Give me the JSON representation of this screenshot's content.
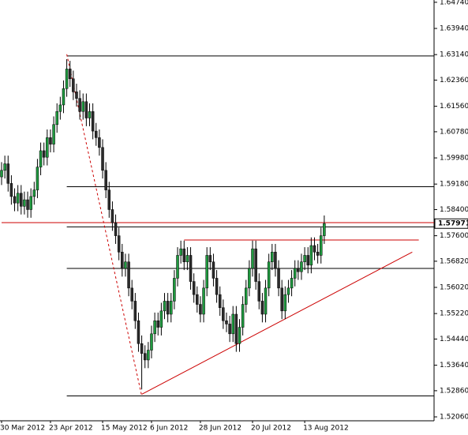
{
  "chart_data": {
    "type": "candlestick",
    "up_color": "#1f9a3f",
    "down_color": "#2b2b2b",
    "wick_color": "#000000",
    "categories": [
      "30 Mar 2012",
      null,
      null,
      null,
      null,
      null,
      null,
      null,
      null,
      null,
      null,
      null,
      null,
      null,
      null,
      "23 Apr 2012",
      null,
      null,
      null,
      null,
      null,
      null,
      null,
      null,
      null,
      null,
      null,
      null,
      null,
      null,
      null,
      "15 May 2012",
      null,
      null,
      null,
      null,
      null,
      null,
      null,
      null,
      null,
      null,
      null,
      null,
      null,
      null,
      "6 Jun 2012",
      null,
      null,
      null,
      null,
      null,
      null,
      null,
      null,
      null,
      null,
      null,
      null,
      null,
      null,
      "28 Jun 2012",
      null,
      null,
      null,
      null,
      null,
      null,
      null,
      null,
      null,
      null,
      null,
      null,
      null,
      null,
      null,
      "20 Jul 2012",
      null,
      null,
      null,
      null,
      null,
      null,
      null,
      null,
      null,
      null,
      null,
      null,
      null,
      null,
      null,
      "13 Aug 2012",
      null,
      null,
      null,
      null,
      null,
      null
    ],
    "open": [
      1.594,
      1.596,
      1.598,
      1.592,
      1.588,
      1.586,
      1.589,
      1.585,
      1.587,
      1.584,
      1.588,
      1.59,
      1.597,
      1.602,
      1.6,
      1.606,
      1.604,
      1.61,
      1.614,
      1.616,
      1.621,
      1.627,
      1.624,
      1.62,
      1.618,
      1.614,
      1.617,
      1.612,
      1.614,
      1.608,
      1.606,
      1.603,
      1.596,
      1.59,
      1.584,
      1.58,
      1.576,
      1.571,
      1.566,
      1.568,
      1.56,
      1.556,
      1.55,
      1.543,
      1.54,
      1.538,
      1.541,
      1.546,
      1.55,
      1.548,
      1.553,
      1.556,
      1.552,
      1.556,
      1.563,
      1.57,
      1.572,
      1.568,
      1.57,
      1.562,
      1.558,
      1.555,
      1.552,
      1.56,
      1.57,
      1.568,
      1.563,
      1.558,
      1.554,
      1.55,
      1.549,
      1.546,
      1.552,
      1.543,
      1.548,
      1.555,
      1.56,
      1.566,
      1.572,
      1.562,
      1.556,
      1.552,
      1.56,
      1.568,
      1.571,
      1.566,
      1.56,
      1.553,
      1.558,
      1.56,
      1.563,
      1.566,
      1.565,
      1.568,
      1.57,
      1.567,
      1.573,
      1.571,
      1.57,
      1.576
    ],
    "high": [
      1.5985,
      1.6005,
      1.6005,
      1.5945,
      1.5905,
      1.5915,
      1.5915,
      1.5895,
      1.5895,
      1.5905,
      1.5925,
      1.5995,
      1.6045,
      1.6045,
      1.6085,
      1.6085,
      1.6125,
      1.6165,
      1.6185,
      1.6235,
      1.63,
      1.6295,
      1.6265,
      1.6225,
      1.6205,
      1.6195,
      1.6195,
      1.6165,
      1.6165,
      1.6105,
      1.6085,
      1.6055,
      1.5985,
      1.5925,
      1.5865,
      1.5825,
      1.5785,
      1.5735,
      1.5705,
      1.5705,
      1.5625,
      1.5585,
      1.5525,
      1.5455,
      1.5425,
      1.5435,
      1.5485,
      1.5525,
      1.5525,
      1.5555,
      1.5585,
      1.5585,
      1.5585,
      1.5655,
      1.5725,
      1.5745,
      1.5745,
      1.5725,
      1.5725,
      1.5645,
      1.5605,
      1.5575,
      1.5625,
      1.5725,
      1.5725,
      1.5705,
      1.5655,
      1.5605,
      1.5565,
      1.5525,
      1.5515,
      1.5545,
      1.5545,
      1.5505,
      1.5575,
      1.5625,
      1.5685,
      1.5745,
      1.5745,
      1.5645,
      1.5585,
      1.5625,
      1.5705,
      1.5735,
      1.5735,
      1.5685,
      1.5625,
      1.5605,
      1.5625,
      1.5655,
      1.5685,
      1.5685,
      1.5705,
      1.5725,
      1.5725,
      1.5755,
      1.5755,
      1.5735,
      1.5785,
      1.5822
    ],
    "low": [
      1.5915,
      1.5935,
      1.5895,
      1.5855,
      1.5835,
      1.5835,
      1.5825,
      1.5825,
      1.5815,
      1.5815,
      1.5855,
      1.5875,
      1.5945,
      1.5975,
      1.5975,
      1.6015,
      1.6015,
      1.6075,
      1.6115,
      1.6135,
      1.6185,
      1.6215,
      1.6175,
      1.6155,
      1.6115,
      1.6115,
      1.6095,
      1.6095,
      1.6055,
      1.6035,
      1.6005,
      1.5935,
      1.5875,
      1.5815,
      1.5775,
      1.5735,
      1.5685,
      1.5635,
      1.5635,
      1.5575,
      1.5535,
      1.5475,
      1.5405,
      1.529,
      1.5355,
      1.5355,
      1.5385,
      1.5435,
      1.5455,
      1.5455,
      1.5505,
      1.5495,
      1.5495,
      1.5535,
      1.5605,
      1.5675,
      1.5655,
      1.5655,
      1.5595,
      1.5555,
      1.5525,
      1.5495,
      1.5495,
      1.5575,
      1.5655,
      1.5605,
      1.5555,
      1.5515,
      1.5475,
      1.5465,
      1.5435,
      1.5435,
      1.5405,
      1.5405,
      1.5455,
      1.5525,
      1.5575,
      1.5635,
      1.5595,
      1.5535,
      1.5495,
      1.5495,
      1.5575,
      1.5655,
      1.5635,
      1.5575,
      1.5505,
      1.5505,
      1.5555,
      1.5575,
      1.5605,
      1.5625,
      1.5625,
      1.5655,
      1.5645,
      1.5645,
      1.5685,
      1.5675,
      1.5675,
      1.5735
    ],
    "close": [
      1.596,
      1.598,
      1.592,
      1.588,
      1.586,
      1.589,
      1.585,
      1.587,
      1.584,
      1.588,
      1.59,
      1.597,
      1.602,
      1.6,
      1.606,
      1.604,
      1.61,
      1.614,
      1.616,
      1.621,
      1.627,
      1.624,
      1.62,
      1.618,
      1.614,
      1.617,
      1.612,
      1.614,
      1.608,
      1.606,
      1.603,
      1.596,
      1.59,
      1.584,
      1.58,
      1.576,
      1.571,
      1.566,
      1.568,
      1.56,
      1.556,
      1.55,
      1.543,
      1.54,
      1.538,
      1.541,
      1.546,
      1.55,
      1.548,
      1.553,
      1.556,
      1.552,
      1.556,
      1.563,
      1.57,
      1.572,
      1.568,
      1.57,
      1.562,
      1.558,
      1.555,
      1.552,
      1.56,
      1.57,
      1.568,
      1.563,
      1.558,
      1.554,
      1.55,
      1.549,
      1.546,
      1.552,
      1.543,
      1.548,
      1.555,
      1.56,
      1.566,
      1.572,
      1.562,
      1.556,
      1.552,
      1.56,
      1.568,
      1.571,
      1.566,
      1.56,
      1.553,
      1.558,
      1.56,
      1.563,
      1.566,
      1.565,
      1.568,
      1.57,
      1.567,
      1.573,
      1.571,
      1.57,
      1.576,
      1.57971
    ],
    "ylim": [
      1.5194,
      1.6481
    ],
    "yticks": [
      {
        "value": 1.6474,
        "label": "1.64740"
      },
      {
        "value": 1.6394,
        "label": "1.63940"
      },
      {
        "value": 1.6314,
        "label": "1.63140"
      },
      {
        "value": 1.6236,
        "label": "1.62360"
      },
      {
        "value": 1.6156,
        "label": "1.61560"
      },
      {
        "value": 1.6078,
        "label": "1.60780"
      },
      {
        "value": 1.5998,
        "label": "1.59980"
      },
      {
        "value": 1.5918,
        "label": "1.59180"
      },
      {
        "value": 1.584,
        "label": "1.58400"
      },
      {
        "value": 1.576,
        "label": "1.57600"
      },
      {
        "value": 1.5682,
        "label": "1.56820"
      },
      {
        "value": 1.5602,
        "label": "1.56020"
      },
      {
        "value": 1.5522,
        "label": "1.55220"
      },
      {
        "value": 1.5444,
        "label": "1.54440"
      },
      {
        "value": 1.5364,
        "label": "1.53640"
      },
      {
        "value": 1.5286,
        "label": "1.52860"
      },
      {
        "value": 1.5206,
        "label": "1.52060"
      }
    ],
    "drawings": [
      {
        "from": [
          20,
          1.631
        ],
        "to": [
          133,
          1.631
        ],
        "color": "#000000",
        "dashed": false
      },
      {
        "from": [
          20,
          1.591
        ],
        "to": [
          133,
          1.591
        ],
        "color": "#000000",
        "dashed": false
      },
      {
        "from": [
          20,
          1.5787
        ],
        "to": [
          133,
          1.5787
        ],
        "color": "#000000",
        "dashed": false
      },
      {
        "from": [
          20,
          1.566
        ],
        "to": [
          133,
          1.566
        ],
        "color": "#000000",
        "dashed": false
      },
      {
        "from": [
          20,
          1.527
        ],
        "to": [
          133,
          1.527
        ],
        "color": "#000000",
        "dashed": false
      },
      {
        "from": [
          0,
          1.58
        ],
        "to": [
          133,
          1.58
        ],
        "color": "#cc0000",
        "dashed": false
      },
      {
        "from": [
          56,
          1.5747
        ],
        "to": [
          128,
          1.5747
        ],
        "color": "#cc0000",
        "dashed": false
      },
      {
        "from": [
          43,
          1.5275
        ],
        "to": [
          126,
          1.571
        ],
        "color": "#cc0000",
        "dashed": false
      },
      {
        "from": [
          20,
          1.6315
        ],
        "to": [
          43,
          1.527
        ],
        "color": "#cc0000",
        "dashed": true
      }
    ]
  }
}
